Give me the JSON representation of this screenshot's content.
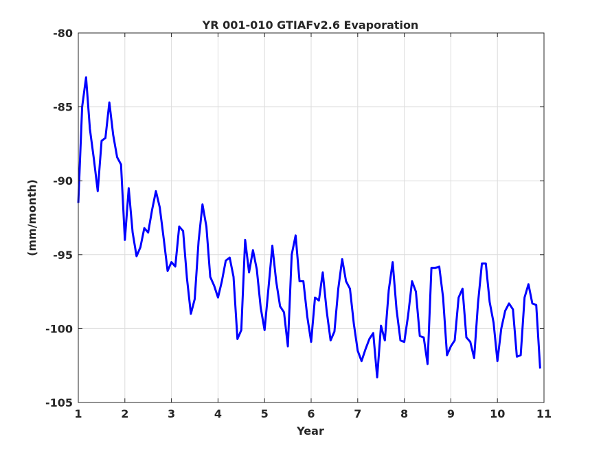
{
  "chart_data": {
    "type": "line",
    "title": "YR 001-010 GTIAFv2.6 Evaporation",
    "xlabel": "Year",
    "ylabel": "(mm/month)",
    "xlim": [
      1,
      11
    ],
    "ylim": [
      -105,
      -80
    ],
    "xticks": [
      "1",
      "2",
      "3",
      "4",
      "5",
      "6",
      "7",
      "8",
      "9",
      "10",
      "11"
    ],
    "yticks": [
      "-80",
      "-85",
      "-90",
      "-95",
      "-100",
      "-105"
    ],
    "grid": true,
    "line_color": "#0000ff",
    "series": [
      {
        "x": [
          1.0,
          1.083,
          1.167,
          1.25,
          1.333,
          1.417,
          1.5,
          1.583,
          1.667,
          1.75,
          1.833,
          1.917,
          2.0,
          2.083,
          2.167,
          2.25,
          2.333,
          2.417,
          2.5,
          2.583,
          2.667,
          2.75,
          2.833,
          2.917,
          3.0,
          3.083,
          3.167,
          3.25,
          3.333,
          3.417,
          3.5,
          3.583,
          3.667,
          3.75,
          3.833,
          3.917,
          4.0,
          4.083,
          4.167,
          4.25,
          4.333,
          4.417,
          4.5,
          4.583,
          4.667,
          4.75,
          4.833,
          4.917,
          5.0,
          5.083,
          5.167,
          5.25,
          5.333,
          5.417,
          5.5,
          5.583,
          5.667,
          5.75,
          5.833,
          5.917,
          6.0,
          6.083,
          6.167,
          6.25,
          6.333,
          6.417,
          6.5,
          6.583,
          6.667,
          6.75,
          6.833,
          6.917,
          7.0,
          7.083,
          7.167,
          7.25,
          7.333,
          7.417,
          7.5,
          7.583,
          7.667,
          7.75,
          7.833,
          7.917,
          8.0,
          8.083,
          8.167,
          8.25,
          8.333,
          8.417,
          8.5,
          8.583,
          8.667,
          8.75,
          8.833,
          8.917,
          9.0,
          9.083,
          9.167,
          9.25,
          9.333,
          9.417,
          9.5,
          9.583,
          9.667,
          9.75,
          9.833,
          9.917,
          10.0,
          10.083,
          10.167,
          10.25,
          10.333,
          10.417,
          10.5,
          10.583,
          10.667,
          10.75,
          10.833,
          10.917
        ],
        "y": [
          -91.5,
          -85.0,
          -83.0,
          -86.5,
          -88.5,
          -90.7,
          -87.3,
          -87.1,
          -84.7,
          -86.9,
          -88.4,
          -88.9,
          -94.0,
          -90.5,
          -93.5,
          -95.1,
          -94.5,
          -93.2,
          -93.5,
          -92.0,
          -90.7,
          -91.8,
          -93.9,
          -96.1,
          -95.5,
          -95.8,
          -93.1,
          -93.4,
          -96.6,
          -99.0,
          -98.0,
          -94.1,
          -91.6,
          -93.1,
          -96.5,
          -97.1,
          -97.9,
          -96.8,
          -95.4,
          -95.2,
          -96.5,
          -100.7,
          -100.1,
          -94.0,
          -96.2,
          -94.7,
          -96.0,
          -98.6,
          -100.1,
          -97.3,
          -94.4,
          -96.8,
          -98.5,
          -98.9,
          -101.2,
          -95.0,
          -93.7,
          -96.8,
          -96.8,
          -99.2,
          -100.9,
          -97.9,
          -98.1,
          -96.2,
          -98.8,
          -100.8,
          -100.2,
          -97.3,
          -95.3,
          -96.8,
          -97.3,
          -99.7,
          -101.5,
          -102.2,
          -101.4,
          -100.7,
          -100.3,
          -103.3,
          -99.8,
          -100.8,
          -97.4,
          -95.5,
          -98.7,
          -100.8,
          -100.9,
          -99.1,
          -96.8,
          -97.5,
          -100.5,
          -100.6,
          -102.4,
          -95.9,
          -95.9,
          -95.8,
          -97.9,
          -101.8,
          -101.2,
          -100.8,
          -97.9,
          -97.3,
          -100.6,
          -100.9,
          -102.0,
          -98.3,
          -95.6,
          -95.6,
          -98.2,
          -99.6,
          -102.2,
          -100.0,
          -98.8,
          -98.3,
          -98.7,
          -101.9,
          -101.8,
          -97.9,
          -97.0,
          -98.3,
          -98.4,
          -102.7
        ]
      }
    ]
  }
}
